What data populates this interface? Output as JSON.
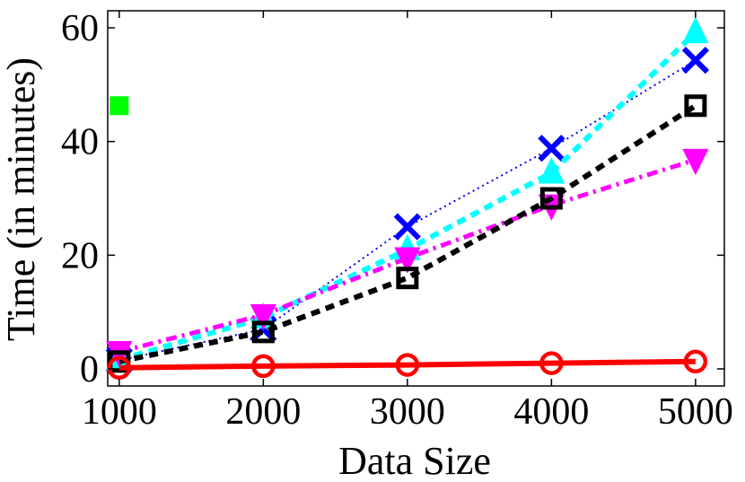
{
  "chart_data": {
    "type": "line",
    "title": "",
    "xlabel": "Data Size",
    "ylabel": "Time (in minutes)",
    "xlim": [
      920,
      5200
    ],
    "ylim": [
      -3,
      63
    ],
    "xticks": [
      1000,
      2000,
      3000,
      4000,
      5000
    ],
    "yticks": [
      0,
      20,
      40,
      60
    ],
    "grid": false,
    "legend": "none",
    "series": [
      {
        "color": "#ff0000",
        "marker": "circle",
        "line": "solid",
        "x": [
          1000,
          2000,
          3000,
          4000,
          5000
        ],
        "y": [
          0.2,
          0.5,
          0.7,
          1.0,
          1.3
        ]
      },
      {
        "color": "#0000ff",
        "marker": "x",
        "line": "dotted",
        "x": [
          1000,
          2000,
          3000,
          4000,
          5000
        ],
        "y": [
          1.5,
          7.0,
          25.0,
          38.8,
          54.3
        ]
      },
      {
        "color": "#00ffff",
        "marker": "triangle-up",
        "line": "dashed",
        "x": [
          1000,
          2000,
          3000,
          4000,
          5000
        ],
        "y": [
          1.6,
          9.0,
          21.0,
          34.5,
          59.2
        ]
      },
      {
        "color": "#000000",
        "marker": "square",
        "line": "dashed",
        "x": [
          1000,
          2000,
          3000,
          4000,
          5000
        ],
        "y": [
          1.3,
          6.5,
          16.0,
          30.0,
          46.3
        ]
      },
      {
        "color": "#ff00ff",
        "marker": "triangle-down",
        "line": "dashdot",
        "x": [
          1000,
          2000,
          3000,
          4000,
          5000
        ],
        "y": [
          3.0,
          9.5,
          19.5,
          28.8,
          36.8
        ]
      },
      {
        "color": "#00ff00",
        "marker": "square",
        "line": "none",
        "x": [
          1000
        ],
        "y": [
          46.3
        ]
      }
    ]
  }
}
